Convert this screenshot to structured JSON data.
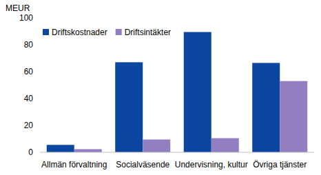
{
  "chart_data": {
    "type": "bar",
    "y_label": "MEUR",
    "categories": [
      "Allmän förvaltning",
      "Socialväsende",
      "Undervisning, kultur",
      "Övriga tjänster"
    ],
    "series": [
      {
        "name": "Driftskostnader",
        "color": "#0b47a1",
        "values": [
          5.5,
          67,
          89.5,
          66.5
        ]
      },
      {
        "name": "Driftsintäkter",
        "color": "#917fc1",
        "values": [
          2.3,
          9.5,
          10.5,
          53
        ]
      }
    ],
    "ylim": [
      0,
      100
    ],
    "yticks": [
      0,
      20,
      40,
      60,
      80,
      100
    ],
    "grid": false,
    "legend": "upper left"
  }
}
